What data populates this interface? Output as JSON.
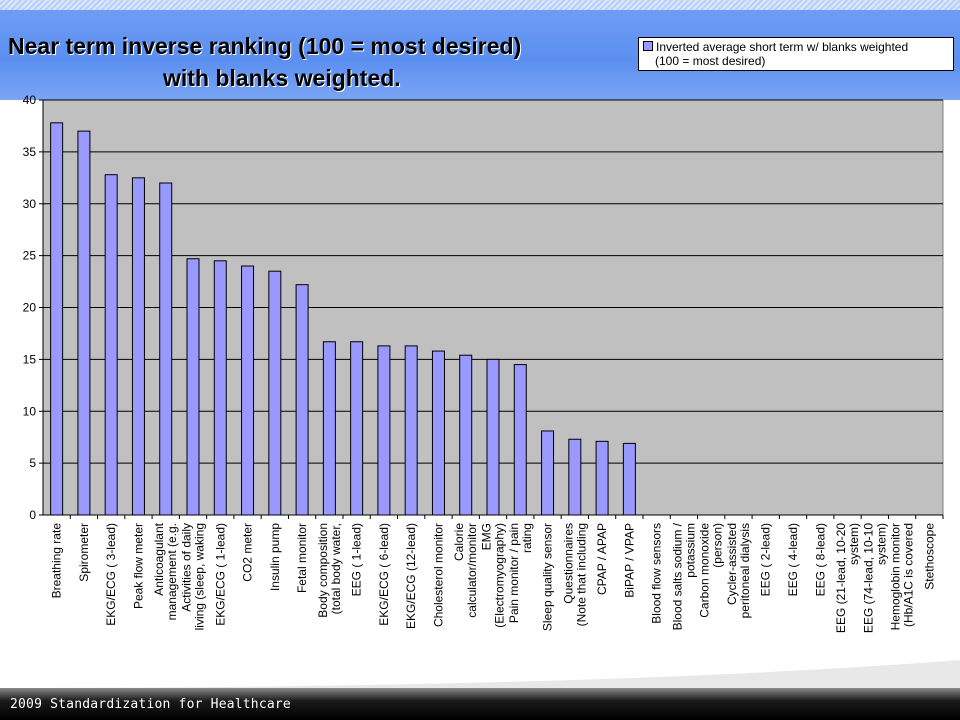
{
  "title": {
    "line1": "Near term inverse ranking (100 = most desired)",
    "line2": "with blanks weighted."
  },
  "legend": {
    "line1": "Inverted average short term w/ blanks weighted",
    "line2": "(100 = most desired)"
  },
  "footer": "2009 Standardization for Healthcare",
  "colors": {
    "bar": "#9999ff",
    "plot_bg": "#c0c0c0",
    "header": "#5b8ff0"
  },
  "chart_data": {
    "type": "bar",
    "ylim": [
      0,
      40
    ],
    "yticks": [
      0,
      5,
      10,
      15,
      20,
      25,
      30,
      35,
      40
    ],
    "grid": true,
    "legend_position": "top-right",
    "series": [
      {
        "name": "Inverted average short term w/ blanks weighted (100 = most desired)"
      }
    ],
    "categories": [
      [
        "Breathing rate"
      ],
      [
        "Spirometer"
      ],
      [
        "EKG/ECG ( 3-lead)"
      ],
      [
        "Peak flow meter"
      ],
      [
        "Anticoagulant",
        "management (e.g."
      ],
      [
        "Activities of daily",
        "living (sleep, waking"
      ],
      [
        "EKG/ECG ( 1-lead)"
      ],
      [
        "CO2 meter"
      ],
      [
        "Insulin pump"
      ],
      [
        "Fetal monitor"
      ],
      [
        "Body composition",
        "(total body water,"
      ],
      [
        "EEG ( 1-lead)"
      ],
      [
        "EKG/ECG ( 6-lead)"
      ],
      [
        "EKG/ECG (12-lead)"
      ],
      [
        "Cholesterol monitor"
      ],
      [
        "Calorie",
        "calculator/monitor"
      ],
      [
        "EMG",
        "(Electromyography)"
      ],
      [
        "Pain monitor / pain",
        "rating"
      ],
      [
        "Sleep quality sensor"
      ],
      [
        "Questionnaires",
        "(Note that including"
      ],
      [
        "CPAP / APAP"
      ],
      [
        "BiPAP / VPAP"
      ],
      [
        "Blood flow sensors"
      ],
      [
        "Blood salts sodium /",
        "potassium"
      ],
      [
        "Carbon monoxide",
        "(person)"
      ],
      [
        "Cycler-assisted",
        "peritoneal dialysis"
      ],
      [
        "EEG ( 2-lead)"
      ],
      [
        "EEG ( 4-lead)"
      ],
      [
        "EEG ( 8-lead)"
      ],
      [
        "EEG (21-lead, 10-20",
        "system)"
      ],
      [
        "EEG (74-lead, 10-10",
        "system)"
      ],
      [
        "Hemoglobin monitor",
        "(Hb/A1C is covered"
      ],
      [
        "Stethoscope"
      ]
    ],
    "values": [
      37.8,
      37.0,
      32.8,
      32.5,
      32.0,
      24.7,
      24.5,
      24.0,
      23.5,
      22.2,
      16.7,
      16.7,
      16.3,
      16.3,
      15.8,
      15.4,
      15.0,
      14.5,
      8.1,
      7.3,
      7.1,
      6.9,
      0,
      0,
      0,
      0,
      0,
      0,
      0,
      0,
      0,
      0,
      0
    ]
  }
}
